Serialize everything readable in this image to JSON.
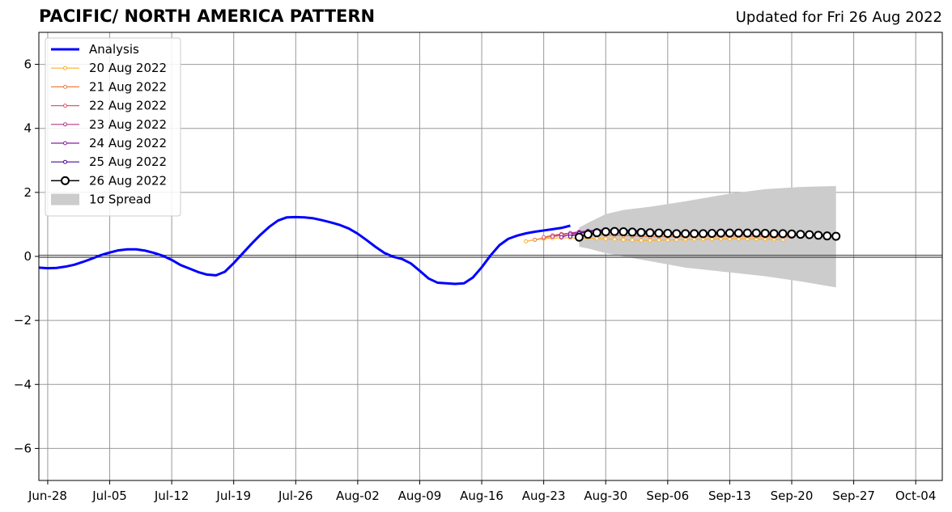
{
  "title": "PACIFIC/ NORTH AMERICA PATTERN",
  "subtitle": "Updated for Fri 26 Aug 2022",
  "chart_data": {
    "type": "line",
    "title": "PACIFIC/ NORTH AMERICA PATTERN",
    "subtitle": "Updated for Fri 26 Aug 2022",
    "xlabel": "",
    "ylabel": "",
    "xlim": [
      "2022-06-27",
      "2022-10-07"
    ],
    "ylim": [
      -7,
      7
    ],
    "grid": true,
    "legend_position": "top-left",
    "x_tick_labels": [
      "Jun-28",
      "Jul-05",
      "Jul-12",
      "Jul-19",
      "Jul-26",
      "Aug-02",
      "Aug-09",
      "Aug-16",
      "Aug-23",
      "Aug-30",
      "Sep-06",
      "Sep-13",
      "Sep-20",
      "Sep-27",
      "Oct-04"
    ],
    "x_tick_dates": [
      "2022-06-28",
      "2022-07-05",
      "2022-07-12",
      "2022-07-19",
      "2022-07-26",
      "2022-08-02",
      "2022-08-09",
      "2022-08-16",
      "2022-08-23",
      "2022-08-30",
      "2022-09-06",
      "2022-09-13",
      "2022-09-20",
      "2022-09-27",
      "2022-10-04"
    ],
    "y_ticks": [
      -6,
      -4,
      -2,
      0,
      2,
      4,
      6
    ],
    "y_tick_labels": [
      "−6",
      "−4",
      "−2",
      "0",
      "2",
      "4",
      "6"
    ],
    "zero_line": 0,
    "analysis": {
      "name": "Analysis",
      "color": "#0000ff",
      "x": [
        "2022-06-27",
        "2022-06-28",
        "2022-06-29",
        "2022-06-30",
        "2022-07-01",
        "2022-07-02",
        "2022-07-03",
        "2022-07-04",
        "2022-07-05",
        "2022-07-06",
        "2022-07-07",
        "2022-07-08",
        "2022-07-09",
        "2022-07-10",
        "2022-07-11",
        "2022-07-12",
        "2022-07-13",
        "2022-07-14",
        "2022-07-15",
        "2022-07-16",
        "2022-07-17",
        "2022-07-18",
        "2022-07-19",
        "2022-07-20",
        "2022-07-21",
        "2022-07-22",
        "2022-07-23",
        "2022-07-24",
        "2022-07-25",
        "2022-07-26",
        "2022-07-27",
        "2022-07-28",
        "2022-07-29",
        "2022-07-30",
        "2022-07-31",
        "2022-08-01",
        "2022-08-02",
        "2022-08-03",
        "2022-08-04",
        "2022-08-05",
        "2022-08-06",
        "2022-08-07",
        "2022-08-08",
        "2022-08-09",
        "2022-08-10",
        "2022-08-11",
        "2022-08-12",
        "2022-08-13",
        "2022-08-14",
        "2022-08-15",
        "2022-08-16",
        "2022-08-17",
        "2022-08-18",
        "2022-08-19",
        "2022-08-20",
        "2022-08-21",
        "2022-08-22",
        "2022-08-23",
        "2022-08-24",
        "2022-08-25",
        "2022-08-26"
      ],
      "y": [
        -0.35,
        -0.37,
        -0.36,
        -0.32,
        -0.26,
        -0.17,
        -0.07,
        0.04,
        0.12,
        0.19,
        0.22,
        0.22,
        0.18,
        0.11,
        0.02,
        -0.11,
        -0.27,
        -0.38,
        -0.49,
        -0.57,
        -0.59,
        -0.48,
        -0.21,
        0.09,
        0.39,
        0.67,
        0.92,
        1.12,
        1.22,
        1.23,
        1.22,
        1.19,
        1.13,
        1.06,
        0.98,
        0.87,
        0.71,
        0.51,
        0.3,
        0.11,
        -0.01,
        -0.08,
        -0.22,
        -0.45,
        -0.69,
        -0.82,
        -0.84,
        -0.86,
        -0.84,
        -0.66,
        -0.34,
        0.03,
        0.35,
        0.55,
        0.65,
        0.72,
        0.77,
        0.81,
        0.85,
        0.89,
        0.96
      ]
    },
    "forecasts": [
      {
        "name": "20 Aug 2022",
        "color": "#fcb028",
        "start": "2022-08-21",
        "y": [
          0.47,
          0.52,
          0.55,
          0.57,
          0.58,
          0.58,
          0.57,
          0.57,
          0.56,
          0.55,
          0.53,
          0.52,
          0.51,
          0.5,
          0.5,
          0.51,
          0.51,
          0.52,
          0.53,
          0.53,
          0.54,
          0.54,
          0.55,
          0.55,
          0.55,
          0.55,
          0.54,
          0.54,
          0.53,
          0.52
        ]
      },
      {
        "name": "21 Aug 2022",
        "color": "#f27d40",
        "start": "2022-08-22",
        "y": [
          0.52,
          0.58,
          0.62,
          0.65,
          0.67,
          0.68,
          0.68,
          0.68,
          0.67,
          0.66,
          0.65,
          0.64,
          0.63,
          0.62,
          0.62,
          0.62,
          0.62,
          0.62,
          0.63,
          0.63,
          0.63,
          0.63,
          0.63,
          0.63,
          0.63,
          0.62,
          0.62,
          0.61,
          0.61,
          0.61
        ]
      },
      {
        "name": "22 Aug 2022",
        "color": "#df5a6c",
        "start": "2022-08-23",
        "y": [
          0.6,
          0.66,
          0.7,
          0.73,
          0.75,
          0.76,
          0.76,
          0.76,
          0.75,
          0.74,
          0.73,
          0.72,
          0.71,
          0.7,
          0.69,
          0.69,
          0.69,
          0.69,
          0.69,
          0.69,
          0.69,
          0.68,
          0.68,
          0.68,
          0.67,
          0.67,
          0.66,
          0.66,
          0.65,
          0.65
        ]
      },
      {
        "name": "23 Aug 2022",
        "color": "#b7378c",
        "start": "2022-08-24",
        "y": [
          0.62,
          0.68,
          0.73,
          0.77,
          0.79,
          0.8,
          0.8,
          0.8,
          0.79,
          0.78,
          0.77,
          0.75,
          0.74,
          0.73,
          0.72,
          0.71,
          0.71,
          0.71,
          0.71,
          0.71,
          0.71,
          0.71,
          0.7,
          0.7,
          0.69,
          0.69,
          0.68,
          0.68,
          0.67,
          0.67
        ]
      },
      {
        "name": "24 Aug 2022",
        "color": "#8c1aa0",
        "start": "2022-08-25",
        "y": [
          0.6,
          0.69,
          0.75,
          0.8,
          0.82,
          0.83,
          0.83,
          0.82,
          0.81,
          0.8,
          0.78,
          0.77,
          0.76,
          0.75,
          0.74,
          0.73,
          0.73,
          0.73,
          0.73,
          0.73,
          0.73,
          0.72,
          0.72,
          0.71,
          0.7,
          0.69,
          0.69,
          0.68,
          0.68,
          0.67
        ]
      },
      {
        "name": "25 Aug 2022",
        "color": "#4a0a90",
        "start": "2022-08-26",
        "y": [
          0.62,
          0.72,
          0.78,
          0.81,
          0.82,
          0.82,
          0.81,
          0.8,
          0.78,
          0.76,
          0.75,
          0.74,
          0.73,
          0.73,
          0.73,
          0.73,
          0.73,
          0.73,
          0.73,
          0.72,
          0.72,
          0.71,
          0.71,
          0.7,
          0.7,
          0.69,
          0.69,
          0.68,
          0.67,
          0.67
        ]
      },
      {
        "name": "26 Aug 2022",
        "color": "#000000",
        "marker": "open-circle",
        "start": "2022-08-27",
        "y": [
          0.6,
          0.69,
          0.74,
          0.77,
          0.78,
          0.77,
          0.76,
          0.75,
          0.74,
          0.73,
          0.72,
          0.71,
          0.71,
          0.71,
          0.71,
          0.72,
          0.73,
          0.73,
          0.73,
          0.73,
          0.73,
          0.72,
          0.71,
          0.71,
          0.7,
          0.69,
          0.68,
          0.66,
          0.64,
          0.63
        ]
      }
    ],
    "spread": {
      "name": "1σ Spread",
      "color": "#cccccc",
      "x": [
        "2022-08-27",
        "2022-08-28",
        "2022-08-30",
        "2022-09-01",
        "2022-09-04",
        "2022-09-08",
        "2022-09-13",
        "2022-09-17",
        "2022-09-21",
        "2022-09-25"
      ],
      "upper": [
        0.9,
        1.05,
        1.32,
        1.45,
        1.55,
        1.72,
        1.96,
        2.1,
        2.17,
        2.2
      ],
      "lower": [
        0.3,
        0.25,
        0.1,
        0.0,
        -0.15,
        -0.35,
        -0.5,
        -0.62,
        -0.78,
        -0.97
      ]
    }
  }
}
